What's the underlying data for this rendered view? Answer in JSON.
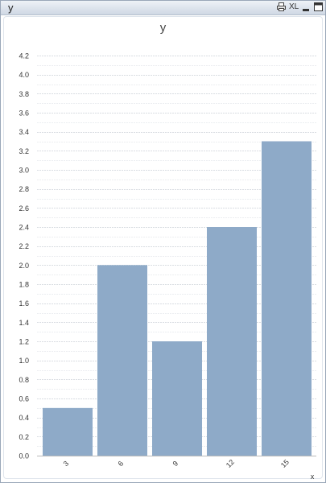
{
  "window": {
    "title": "y",
    "icons": {
      "print": "print-icon",
      "xl": "XL",
      "minimize": "minimize-icon",
      "maximize": "maximize-icon"
    }
  },
  "chart_data": {
    "type": "bar",
    "title": "y",
    "xlabel": "x",
    "ylabel": "",
    "categories": [
      "3",
      "6",
      "9",
      "12",
      "15"
    ],
    "values": [
      0.5,
      2.0,
      1.2,
      2.4,
      3.3
    ],
    "ylim": [
      0,
      4.2
    ],
    "yticks": [
      "0.0",
      "0.2",
      "0.4",
      "0.6",
      "0.8",
      "1.0",
      "1.2",
      "1.4",
      "1.6",
      "1.8",
      "2.0",
      "2.2",
      "2.4",
      "2.6",
      "2.8",
      "3.0",
      "3.2",
      "3.4",
      "3.6",
      "3.8",
      "4.0",
      "4.2"
    ],
    "grid": true,
    "bar_color": "#8eaac8"
  }
}
